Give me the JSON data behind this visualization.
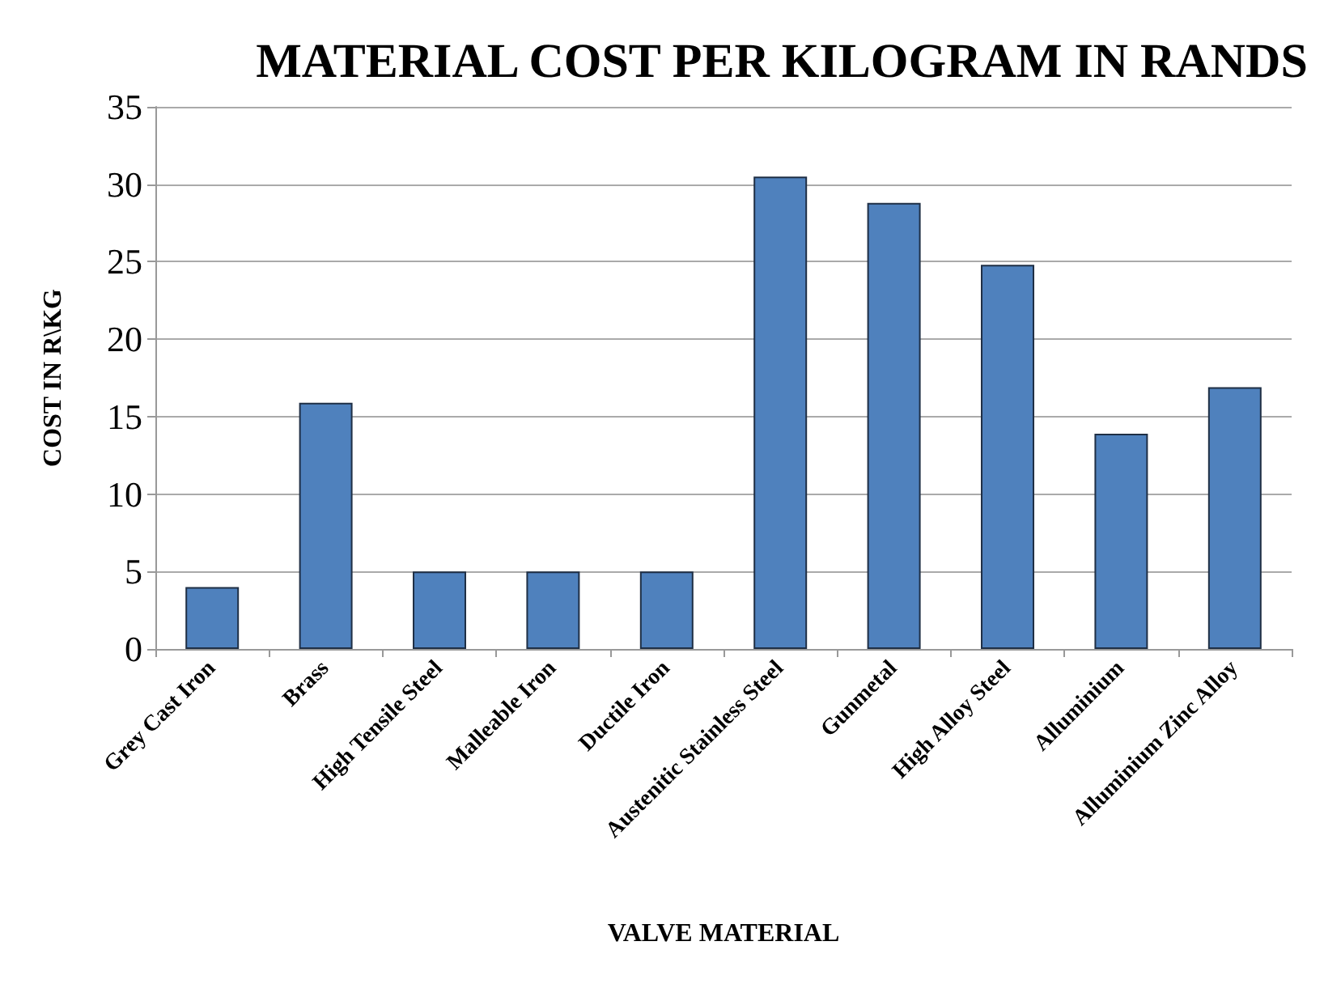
{
  "chart_data": {
    "type": "bar",
    "title": "MATERIAL COST PER KILOGRAM IN RANDS",
    "xlabel": "VALVE MATERIAL",
    "ylabel": "COST IN R\\KG",
    "categories": [
      "Grey Cast Iron",
      "Brass",
      "High Tensile Steel",
      "Malleable Iron",
      "Ductile Iron",
      "Austenitic Stainless Steel",
      "Gunmetal",
      "High Alloy Steel",
      "Alluminium",
      "Alluminium Zinc Alloy"
    ],
    "values": [
      4.0,
      15.9,
      5.0,
      5.0,
      5.0,
      30.5,
      28.8,
      24.8,
      13.9,
      16.9
    ],
    "color": "#4f81bd",
    "ylim": [
      0,
      35
    ],
    "yticks": [
      0,
      5,
      10,
      15,
      20,
      25,
      30,
      35
    ],
    "grid": "y"
  }
}
